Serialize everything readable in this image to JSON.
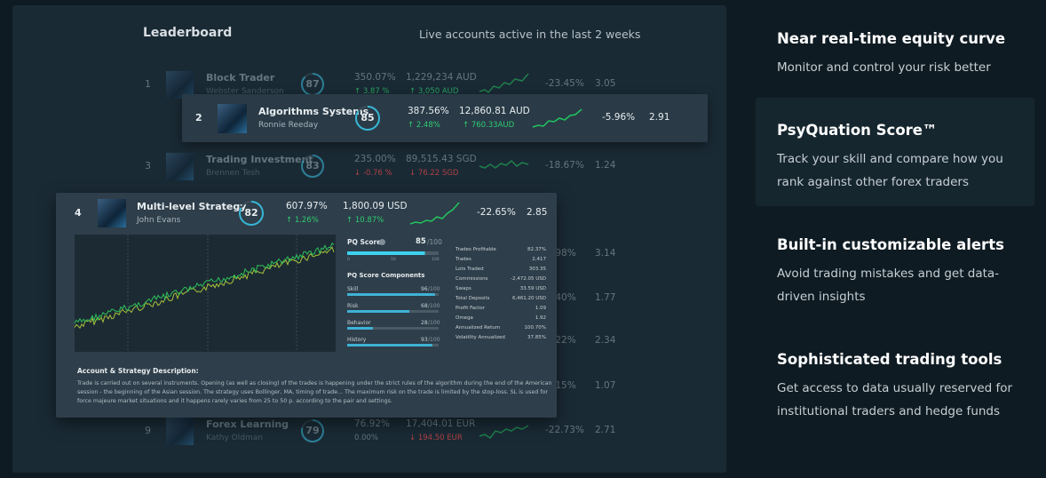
{
  "leaderboard": {
    "title": "Leaderboard",
    "subtitle": "Live accounts active in the last 2 weeks",
    "rows": [
      {
        "rank": "1",
        "name": "Block Trader",
        "owner": "Webster Sanderson",
        "score": 87,
        "return": "350.07%",
        "return_change": "↑ 3.87 %",
        "equity": "1,229,234 AUD",
        "equity_change": "↑ 3,050 AUD",
        "drawdown": "-23.45%",
        "ratio": "3.05"
      },
      {
        "rank": "2",
        "name": "Algorithms Systems",
        "owner": "Ronnie Reeday",
        "score": 85,
        "return": "387.56%",
        "return_change": "↑ 2.48%",
        "equity": "12,860.81 AUD",
        "equity_change": "↑ 760.33AUD",
        "drawdown": "-5.96%",
        "ratio": "2.91"
      },
      {
        "rank": "3",
        "name": "Trading Investment",
        "owner": "Brennen Tesh",
        "score": 83,
        "return": "235.00%",
        "return_change": "↓ -0.76 %",
        "equity": "89,515.43 SGD",
        "equity_change": "↓ 76.22 SGD",
        "drawdown": "-18.67%",
        "ratio": "1.24"
      },
      {
        "rank": "4",
        "name": "Multi-level Strategy",
        "owner": "John Evans",
        "score": 82,
        "return": "607.97%",
        "return_change": "↑ 1.26%",
        "equity": "1,800.09 USD",
        "equity_change": "↑ 10.87%",
        "drawdown": "-22.65%",
        "ratio": "2.85"
      },
      {
        "rank": "9",
        "name": "Forex Learning",
        "owner": "Kathy Oldman",
        "score": 79,
        "return": "76.92%",
        "return_change": "0.00%",
        "equity": "17,404.01 EUR",
        "equity_change": "↓ 194.50 EUR",
        "drawdown": "-22.73%",
        "ratio": "2.71"
      }
    ],
    "partial_rows": [
      {
        "drawdown": ".98%",
        "ratio": "3.14"
      },
      {
        "drawdown": ".40%",
        "ratio": "1.77"
      },
      {
        "drawdown": ".22%",
        "ratio": "2.34"
      },
      {
        "drawdown": ".15%",
        "ratio": "1.07"
      }
    ]
  },
  "card": {
    "pq_label": "PQ Score",
    "pq_score": 85,
    "pq_max": "/100",
    "pq_scale": [
      "0",
      "50",
      "100"
    ],
    "components_title": "PQ Score Components",
    "components": [
      {
        "name": "Skill",
        "score": 96,
        "max": "/100"
      },
      {
        "name": "Risk",
        "score": 68,
        "max": "/100"
      },
      {
        "name": "Behavior",
        "score": 28,
        "max": "/100"
      },
      {
        "name": "History",
        "score": 93,
        "max": "/100"
      }
    ],
    "stats": [
      {
        "label": "Trades Profitable",
        "value": "82.37%"
      },
      {
        "label": "Trades",
        "value": "2,417"
      },
      {
        "label": "Lots Traded",
        "value": "303.35"
      },
      {
        "label": "Commissions",
        "value": "-2,472.05 USD"
      },
      {
        "label": "Swaps",
        "value": "33.59 USD"
      },
      {
        "label": "Total Deposits",
        "value": "6,461.20 USD"
      },
      {
        "label": "Profit Factor",
        "value": "1.09"
      },
      {
        "label": "Omega",
        "value": "1.92"
      },
      {
        "label": "Annualized Return",
        "value": "100.70%"
      },
      {
        "label": "Volatility Annualized",
        "value": "37.85%"
      }
    ],
    "description_title": "Account & Strategy Description:",
    "description": "Trade is carried out on several instruments. Opening (as well as closing) of the trades is happening under the strict rules of the algorithm during the end of the American session - the beginning of the Asian session. The strategy uses Bollinger, MA, timing of trade... The maximum risk on the trade is limited by the stop-loss. SL is used for force majeure market situations and it happens rarely varies from 25 to 50 p. according to the pair and settings."
  },
  "features": [
    {
      "title": "Near real-time equity curve",
      "text": "Monitor and control your risk better"
    },
    {
      "title": "PsyQuation Score™",
      "text": "Track your skill and compare how you rank against other forex traders"
    },
    {
      "title": "Built-in customizable alerts",
      "text": "Avoid trading mistakes and get data-driven insights"
    },
    {
      "title": "Sophisticated trading tools",
      "text": "Get access to data usually reserved for institutional traders and hedge funds"
    }
  ]
}
